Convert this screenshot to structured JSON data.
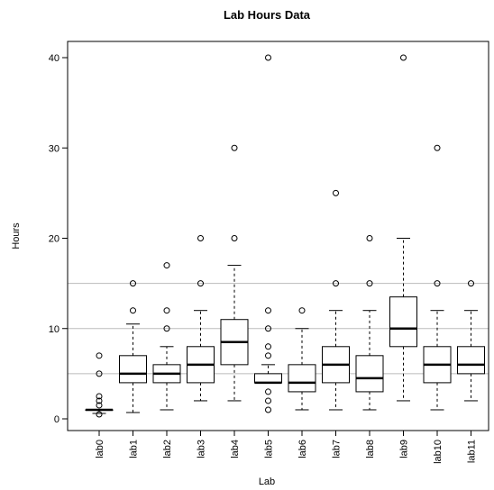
{
  "chart_data": {
    "type": "box",
    "title": "Lab Hours Data",
    "xlabel": "Lab",
    "ylabel": "Hours",
    "ylim": [
      -2,
      42
    ],
    "yticks": [
      0,
      10,
      20,
      30,
      40
    ],
    "reference_lines": [
      5,
      10,
      15
    ],
    "categories": [
      "lab0",
      "lab1",
      "lab2",
      "lab3",
      "lab4",
      "lab5",
      "lab6",
      "lab7",
      "lab8",
      "lab9",
      "lab10",
      "lab11"
    ],
    "boxes": [
      {
        "lo": 0.6,
        "q1": 1,
        "median": 1,
        "q3": 1,
        "hi": 1,
        "outliers": [
          0.5,
          1.5,
          2,
          2.5,
          5,
          7
        ]
      },
      {
        "lo": 0.7,
        "q1": 4,
        "median": 5,
        "q3": 7,
        "hi": 10.5,
        "outliers": [
          12,
          15
        ]
      },
      {
        "lo": 1,
        "q1": 4,
        "median": 5,
        "q3": 6,
        "hi": 8,
        "outliers": [
          10,
          12,
          17
        ]
      },
      {
        "lo": 2,
        "q1": 4,
        "median": 6,
        "q3": 8,
        "hi": 12,
        "outliers": [
          15,
          20
        ]
      },
      {
        "lo": 2,
        "q1": 6,
        "median": 8.5,
        "q3": 11,
        "hi": 17,
        "outliers": [
          20,
          30
        ]
      },
      {
        "lo": 4,
        "q1": 4,
        "median": 4,
        "q3": 5,
        "hi": 6,
        "outliers": [
          1,
          2,
          3,
          7,
          8,
          10,
          12,
          40
        ]
      },
      {
        "lo": 1,
        "q1": 3,
        "median": 4,
        "q3": 6,
        "hi": 10,
        "outliers": [
          12
        ]
      },
      {
        "lo": 1,
        "q1": 4,
        "median": 6,
        "q3": 8,
        "hi": 12,
        "outliers": [
          15,
          25
        ]
      },
      {
        "lo": 1,
        "q1": 3,
        "median": 4.5,
        "q3": 7,
        "hi": 12,
        "outliers": [
          15,
          20
        ]
      },
      {
        "lo": 2,
        "q1": 8,
        "median": 10,
        "q3": 13.5,
        "hi": 20,
        "outliers": [
          40
        ]
      },
      {
        "lo": 1,
        "q1": 4,
        "median": 6,
        "q3": 8,
        "hi": 12,
        "outliers": [
          15,
          30
        ]
      },
      {
        "lo": 2,
        "q1": 5,
        "median": 6,
        "q3": 8,
        "hi": 12,
        "outliers": [
          15
        ]
      }
    ],
    "grid": false,
    "legend": "none"
  }
}
